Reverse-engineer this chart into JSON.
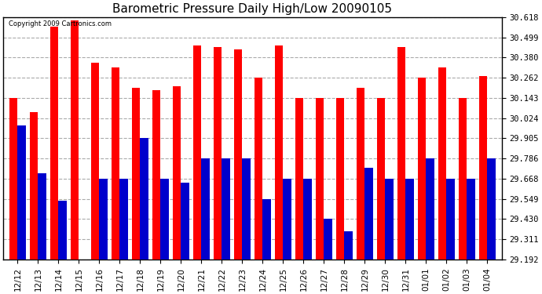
{
  "title": "Barometric Pressure Daily High/Low 20090105",
  "copyright": "Copyright 2009 Cartronics.com",
  "categories": [
    "12/12",
    "12/13",
    "12/14",
    "12/15",
    "12/16",
    "12/17",
    "12/18",
    "12/19",
    "12/20",
    "12/21",
    "12/22",
    "12/23",
    "12/24",
    "12/25",
    "12/26",
    "12/27",
    "12/28",
    "12/29",
    "12/30",
    "12/31",
    "01/01",
    "01/02",
    "01/03",
    "01/04"
  ],
  "highs": [
    30.143,
    30.06,
    30.56,
    30.6,
    30.35,
    30.32,
    30.2,
    30.19,
    30.21,
    30.45,
    30.44,
    30.43,
    30.262,
    30.45,
    30.143,
    30.143,
    30.143,
    30.2,
    30.143,
    30.44,
    30.262,
    30.32,
    30.143,
    30.27
  ],
  "lows": [
    29.98,
    29.7,
    29.54,
    29.192,
    29.668,
    29.668,
    29.905,
    29.668,
    29.645,
    29.786,
    29.786,
    29.786,
    29.549,
    29.668,
    29.668,
    29.43,
    29.36,
    29.73,
    29.668,
    29.668,
    29.786,
    29.668,
    29.668,
    29.786
  ],
  "bar_color_high": "#ff0000",
  "bar_color_low": "#0000cc",
  "background_color": "#ffffff",
  "plot_bg_color": "#ffffff",
  "grid_color": "#aaaaaa",
  "yticks": [
    29.192,
    29.311,
    29.43,
    29.549,
    29.668,
    29.786,
    29.905,
    30.024,
    30.143,
    30.262,
    30.38,
    30.499,
    30.618
  ],
  "ymin": 29.192,
  "ymax": 30.618,
  "figwidth": 6.9,
  "figheight": 3.75,
  "dpi": 100
}
